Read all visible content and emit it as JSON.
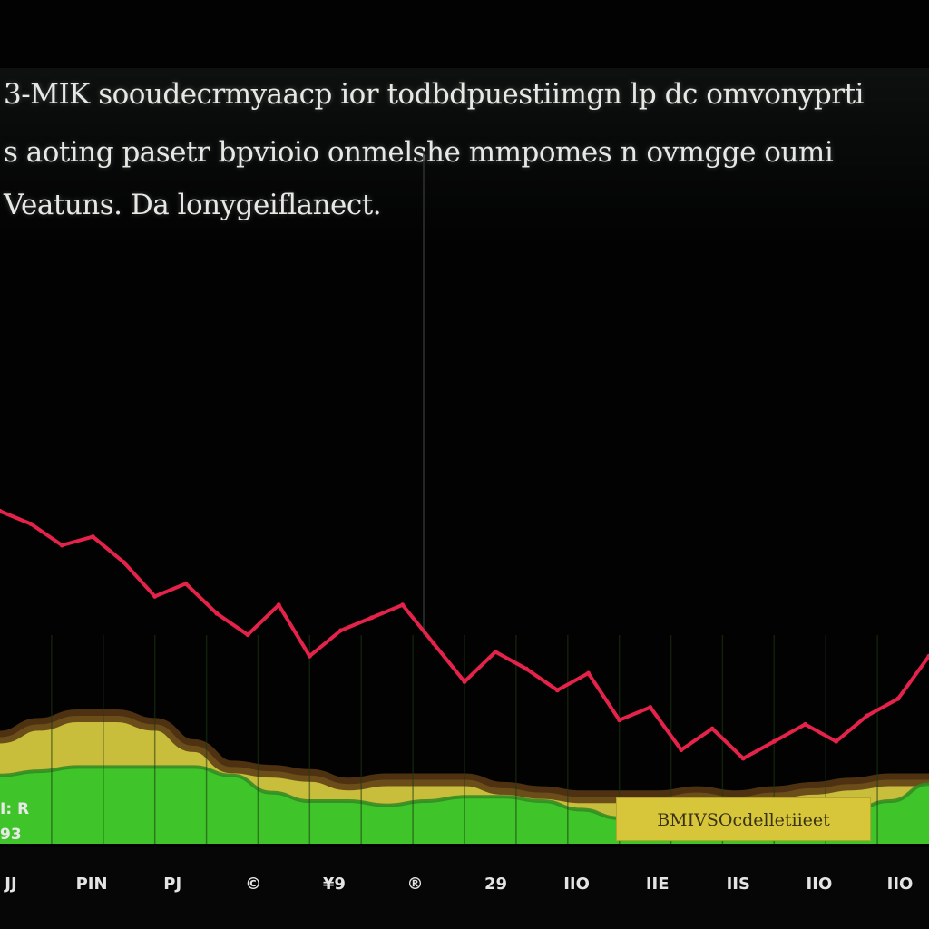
{
  "header": {
    "line_1": "3-MIK sooudecrmyaacp ior todbdpuestiimgn lp dc omvonyprti",
    "line_2": "s aoting pasetr bpvioio onmelshe mmpomes n ovmgge oumi",
    "line_3": "Veatuns. Da lonygeiflanect."
  },
  "chart_data": {
    "type": "line",
    "title": "",
    "xlabel": "",
    "ylabel": "",
    "grid": true,
    "legend": "none",
    "x_tick_labels": [
      "JJ",
      "PIN",
      "PJ",
      "©",
      "¥9",
      "®",
      "29",
      "IIO",
      "IIE",
      "IIS",
      "IIO",
      "IIO"
    ],
    "series": [
      {
        "color": "#e5234a",
        "style": "line",
        "values": [
          78,
          75,
          70,
          72,
          66,
          58,
          61,
          54,
          49,
          56,
          44,
          50,
          53,
          56,
          47,
          38,
          45,
          41,
          36,
          40,
          29,
          32,
          22,
          27,
          20,
          24,
          28,
          24,
          30,
          34,
          44
        ]
      },
      {
        "color": "#c9bd3c",
        "style": "area",
        "values": [
          25,
          28,
          30,
          30,
          28,
          23,
          18,
          17,
          16,
          14,
          15,
          15,
          15,
          13,
          12,
          11,
          11,
          11,
          12,
          11,
          12,
          13,
          14,
          15,
          15
        ]
      },
      {
        "color": "#3fc52a",
        "style": "area",
        "values": [
          16,
          17,
          18,
          18,
          18,
          18,
          16,
          12,
          10,
          10,
          9,
          10,
          11,
          11,
          10,
          8,
          6,
          7,
          9,
          10,
          9,
          7,
          8,
          10,
          14
        ]
      }
    ]
  },
  "side_labels": {
    "line_1": "I: R",
    "line_2": "93"
  },
  "annotation": "BMIVSOcdelletiieet",
  "colors": {
    "background": "#020202",
    "line": "#e5234a",
    "upper_band": "#c9bd3c",
    "lower_band": "#3fc52a",
    "band_edge": "#5a3a14"
  }
}
